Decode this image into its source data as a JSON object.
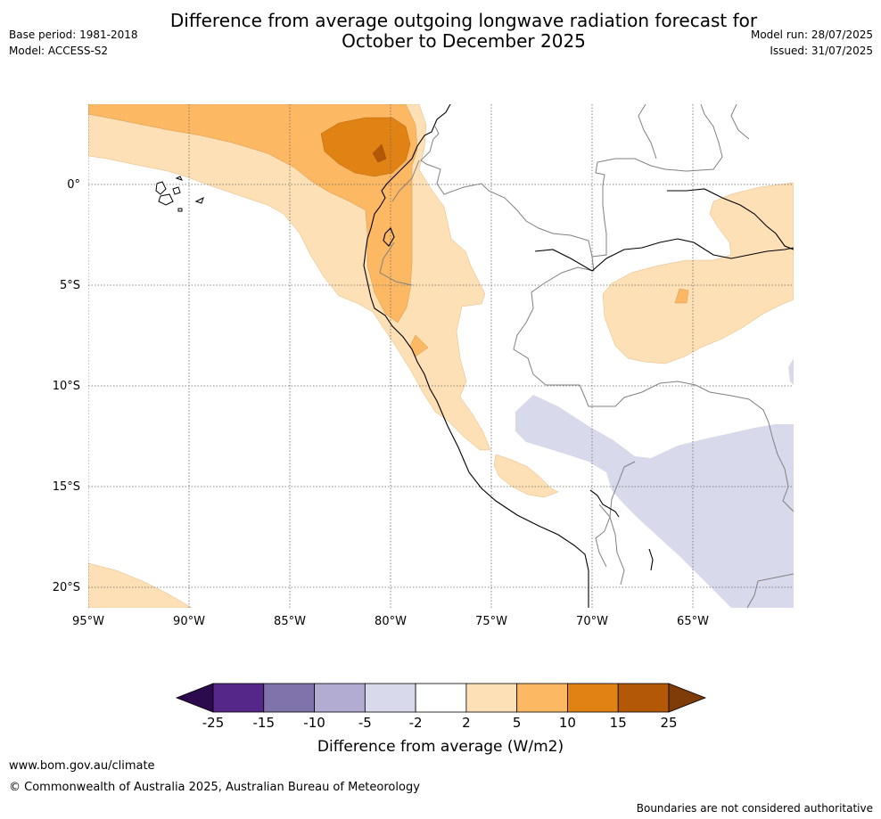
{
  "title_line1": "Difference from average outgoing longwave radiation forecast for",
  "title_line2": "October to December 2025",
  "base_period": "Base period: 1981-2018",
  "model": "Model: ACCESS-S2",
  "model_run": "Model run: 28/07/2025",
  "issued": "Issued: 31/07/2025",
  "map": {
    "lat_labels": [
      "0°",
      "5°S",
      "10°S",
      "15°S",
      "20°S"
    ],
    "lat_values": [
      0,
      -5,
      -10,
      -15,
      -20
    ],
    "lon_labels": [
      "95°W",
      "90°W",
      "85°W",
      "80°W",
      "75°W",
      "70°W",
      "65°W"
    ],
    "lon_values": [
      -95,
      -90,
      -85,
      -80,
      -75,
      -70,
      -65
    ]
  },
  "colorbar": {
    "title": "Difference from average (W/m2)",
    "ticks": [
      "-25",
      "-15",
      "-10",
      "-5",
      "-2",
      "2",
      "5",
      "10",
      "15",
      "25"
    ],
    "colors": {
      "below_min": "#2d0a4e",
      "-25_-15": "#542788",
      "-15_-10": "#8073ac",
      "-10_-5": "#b2abd2",
      "-5_-2": "#d8daeb",
      "-2_2": "#ffffff",
      "2_5": "#fee0b6",
      "5_10": "#fdb863",
      "10_15": "#e08214",
      "15_25": "#b35806",
      "above_max": "#7f3b08"
    }
  },
  "footer": {
    "url": "www.bom.gov.au/climate",
    "copyright": "© Commonwealth of Australia 2025, Australian Bureau of Meteorology",
    "disclaimer": "Boundaries are not considered authoritative"
  }
}
